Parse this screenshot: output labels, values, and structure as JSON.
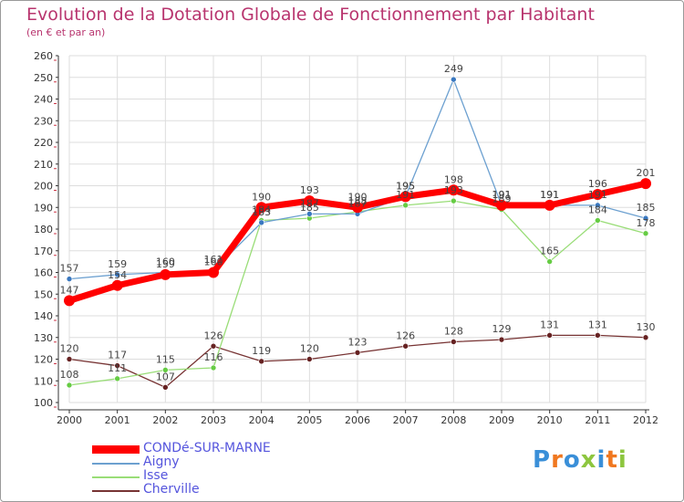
{
  "header": {
    "title": "Evolution de la Dotation Globale de Fonctionnement par Habitant",
    "subtitle": "(en € et par an)"
  },
  "logo": {
    "letters": [
      "P",
      "r",
      "o",
      "x",
      "i",
      "t",
      "i"
    ],
    "colors": [
      "#3a8fd8",
      "#f07820",
      "#3a8fd8",
      "#8dc63f",
      "#3a8fd8",
      "#f07820",
      "#8dc63f"
    ]
  },
  "chart_data": {
    "type": "line",
    "title": "Evolution de la Dotation Globale de Fonctionnement par Habitant",
    "subtitle": "(en € et par an)",
    "xlabel": "",
    "ylabel": "",
    "ylim": [
      100,
      260
    ],
    "yticks": [
      100,
      110,
      120,
      130,
      140,
      150,
      160,
      170,
      180,
      190,
      200,
      210,
      220,
      230,
      240,
      250,
      260
    ],
    "grid": true,
    "legend": "bottom-left",
    "categories": [
      "2000",
      "2001",
      "2002",
      "2003",
      "2004",
      "2005",
      "2006",
      "2007",
      "2008",
      "2009",
      "2010",
      "2011",
      "2012"
    ],
    "series": [
      {
        "name": "CONDé-SUR-MARNE",
        "color": "#ff0000",
        "values": [
          147,
          154,
          159,
          160,
          190,
          193,
          190,
          195,
          198,
          191,
          191,
          196,
          201
        ]
      },
      {
        "name": "Aigny",
        "color": "#6ca0d0",
        "marker": "#3a78c0",
        "values": [
          157,
          159,
          160,
          161,
          183,
          187,
          187,
          195,
          249,
          191,
          191,
          191,
          185
        ]
      },
      {
        "name": "Isse",
        "color": "#99dd77",
        "marker": "#66cc44",
        "values": [
          108,
          111,
          115,
          116,
          184,
          185,
          188,
          191,
          193,
          189,
          165,
          184,
          178
        ]
      },
      {
        "name": "Cherville",
        "color": "#773333",
        "marker": "#662222",
        "values": [
          120,
          117,
          107,
          126,
          119,
          120,
          123,
          126,
          128,
          129,
          131,
          131,
          130
        ]
      }
    ],
    "labels": [
      {
        "series": "CONDé-SUR-MARNE",
        "values": [
          "147",
          "154",
          "159",
          "160",
          "190",
          "193",
          "190",
          "195",
          "198",
          "191",
          "191",
          "196",
          "201"
        ]
      },
      {
        "series": "Aigny",
        "values": [
          "157",
          "159",
          "160",
          "161",
          "183",
          "187",
          "187",
          "195",
          "249",
          "191",
          "191",
          "191",
          "185"
        ]
      },
      {
        "series": "Isse",
        "values": [
          "",
          "111",
          "",
          "116",
          "184",
          "185",
          "188",
          "191",
          "193",
          "189",
          "165",
          "184",
          "178"
        ]
      },
      {
        "series": "Cherville",
        "values": [
          "120",
          "117",
          "107",
          "126",
          "119",
          "120",
          "123",
          "126",
          "128",
          "129",
          "131",
          "131",
          "130"
        ]
      }
    ]
  }
}
